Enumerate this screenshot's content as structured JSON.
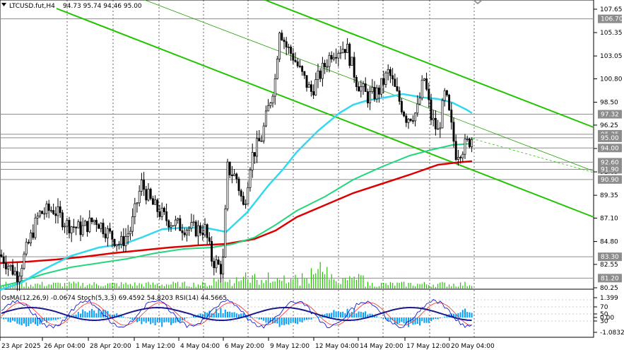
{
  "header": {
    "symbol_info": "LTCUSD.fut,H4",
    "ohlc": "94.73 95.74 94.46 95.00"
  },
  "indicator_header": "OsMA(12,26,9) -0.0674  Stoch(5,3,3) 69.4592 54.8203  RSI(14) 44.5665",
  "chart_data": {
    "type": "candlestick",
    "price_axis": {
      "ticks": [
        "107.65",
        "105.35",
        "103.05",
        "100.80",
        "98.50",
        "96.25",
        "93.95",
        "91.65",
        "89.35",
        "87.10",
        "84.80",
        "82.55",
        "80.25"
      ],
      "min": 80.25,
      "max": 107.65
    },
    "price_levels": [
      {
        "value": 106.7,
        "label": "106.70"
      },
      {
        "value": 97.32,
        "label": "97.32"
      },
      {
        "value": 95.35,
        "label": "95.35"
      },
      {
        "value": 95.0,
        "label": "95.00"
      },
      {
        "value": 94.0,
        "label": "94.00"
      },
      {
        "value": 92.6,
        "label": "92.60"
      },
      {
        "value": 91.9,
        "label": "91.90"
      },
      {
        "value": 90.9,
        "label": "90.90"
      },
      {
        "value": 83.3,
        "label": "83.30"
      },
      {
        "value": 81.2,
        "label": "81.20"
      }
    ],
    "time_axis": [
      "23 Apr 2025",
      "26 Apr 04:00",
      "28 Apr 20:00",
      "1 May 12:00",
      "4 May 04:00",
      "6 May 20:00",
      "9 May 12:00",
      "12 May 04:00",
      "14 May 20:00",
      "17 May 12:00",
      "20 May 04:00"
    ],
    "indicator_axis": [
      "1.399",
      "70",
      "50",
      "30",
      "0.00",
      "-1.0832"
    ],
    "series": [
      {
        "name": "EMA fast",
        "color": "#32d8ef"
      },
      {
        "name": "EMA mid",
        "color": "#22d67e"
      },
      {
        "name": "EMA slow",
        "color": "#dd0000"
      }
    ]
  },
  "colors": {
    "candle": "#000000",
    "channel": "#22c400",
    "level_line": "#8d8d8d",
    "tag_bg": "#ffffff",
    "volume": "#22c400",
    "osma": "#00a0ff",
    "stoch_main": "#0000cc",
    "stoch_signal": "#ff2a2a",
    "rsi": "#1a1a8c"
  }
}
